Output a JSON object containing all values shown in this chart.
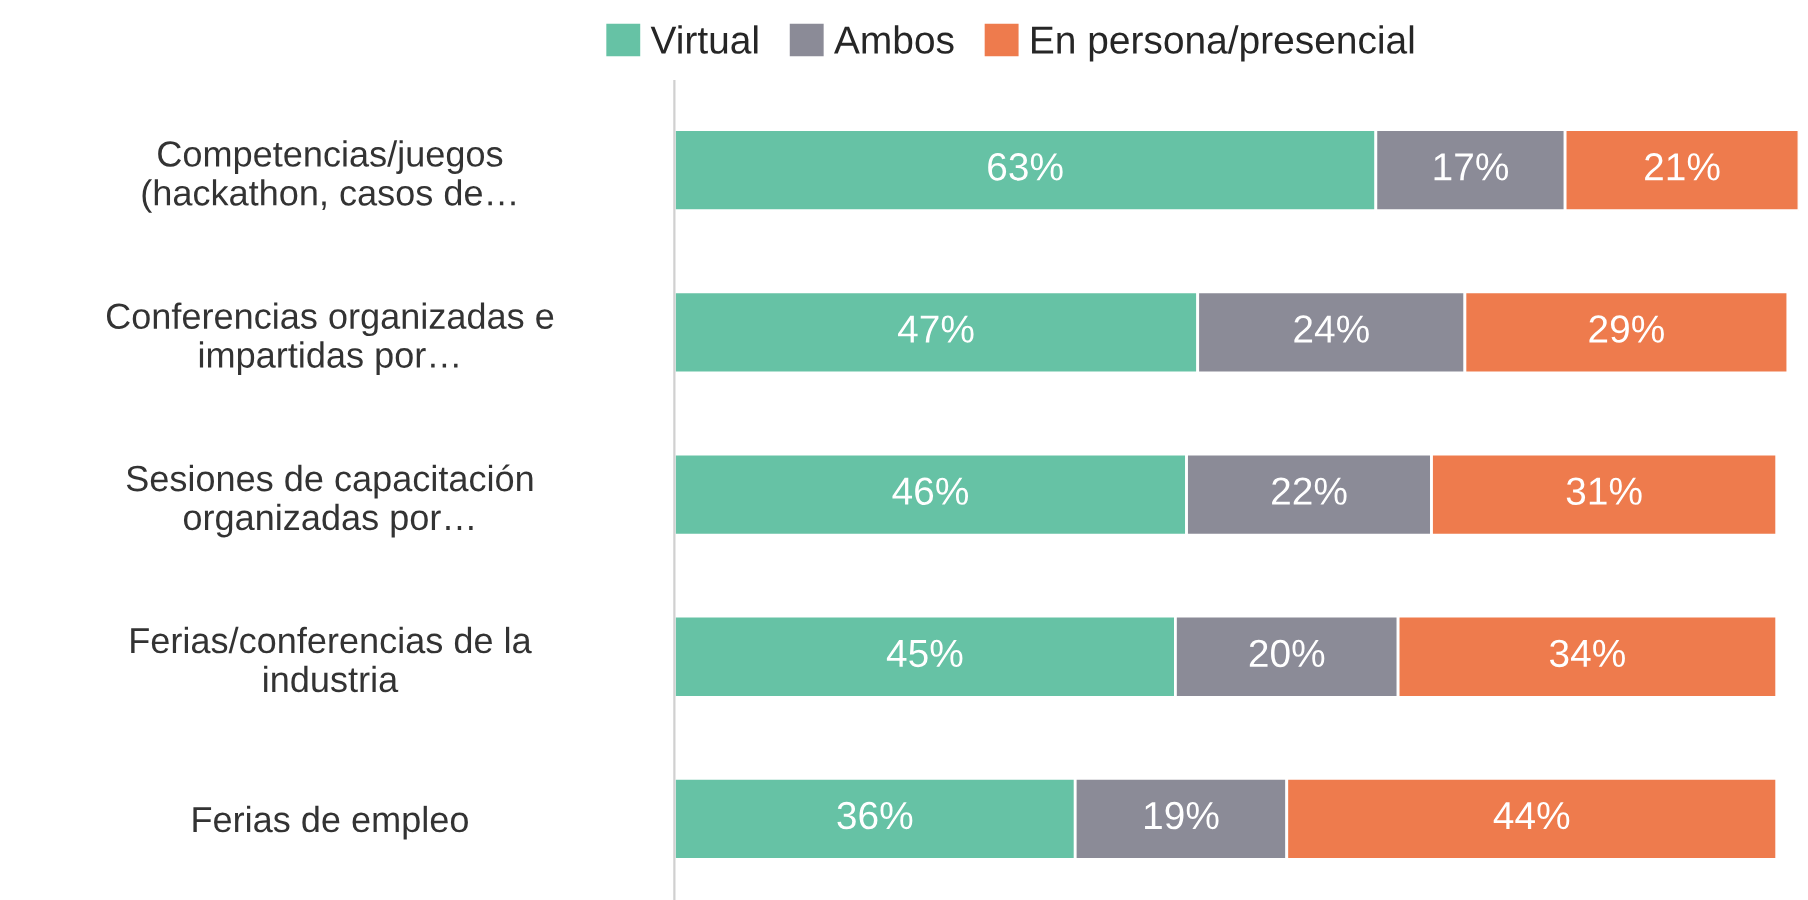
{
  "chart_data": {
    "type": "bar",
    "orientation": "horizontal",
    "stacked": true,
    "legend": "top",
    "grid": false,
    "tick_labels": "y",
    "categories": [
      "Competencias/juegos\n(hackathon, casos de…",
      "Conferencias organizadas e\nimpartidas por…",
      "Sesiones de capacitación\norganizadas por…",
      "Ferias/conferencias de la\nindustria",
      "Ferias de empleo"
    ],
    "series": [
      {
        "name": "Virtual",
        "color": "#66c2a5",
        "values": [
          63,
          47,
          46,
          45,
          36
        ],
        "value_labels": [
          "63%",
          "47%",
          "46%",
          "45%",
          "36%"
        ]
      },
      {
        "name": "Ambos",
        "color": "#8b8b97",
        "values": [
          17,
          24,
          22,
          20,
          19
        ],
        "value_labels": [
          "17%",
          "24%",
          "22%",
          "20%",
          "19%"
        ]
      },
      {
        "name": "En persona/presencial",
        "color": "#ee7b4d",
        "values": [
          21,
          29,
          31,
          34,
          44
        ],
        "value_labels": [
          "21%",
          "29%",
          "31%",
          "34%",
          "44%"
        ]
      }
    ]
  }
}
